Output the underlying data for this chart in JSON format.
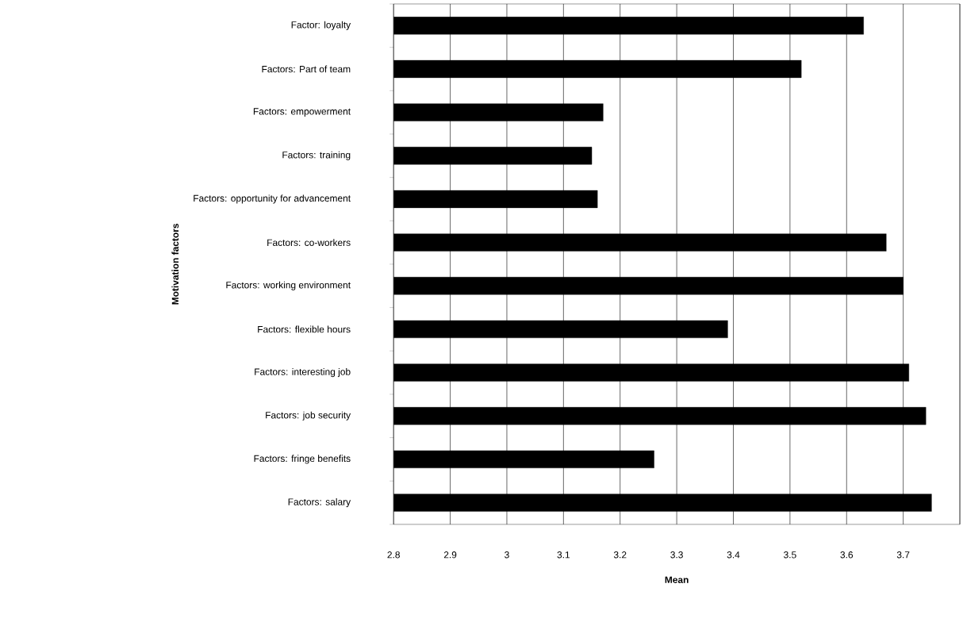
{
  "chart_data": {
    "type": "bar",
    "orientation": "horizontal",
    "xlabel": "Mean",
    "ylabel": "Motivation factors",
    "categories": [
      "Factor: loyalty",
      "Factors: Part of team",
      "Factors: empowerment",
      "Factors: training",
      "Factors: opportunity for advancement",
      "Factors: co-workers",
      "Factors: working environment",
      "Factors: flexible hours",
      "Factors: interesting job",
      "Factors: job security",
      "Factors: fringe benefits",
      "Factors: salary"
    ],
    "values": [
      3.63,
      3.52,
      3.17,
      3.15,
      3.16,
      3.67,
      3.7,
      3.39,
      3.71,
      3.74,
      3.26,
      3.75
    ],
    "color": "#000000",
    "xlim": [
      2.8,
      3.8
    ],
    "xticks": [
      2.8,
      2.9,
      3,
      3.1,
      3.2,
      3.3,
      3.4,
      3.5,
      3.6,
      3.7,
      {
        "value": 3.8,
        "label": null
      }
    ],
    "grid": "x"
  }
}
